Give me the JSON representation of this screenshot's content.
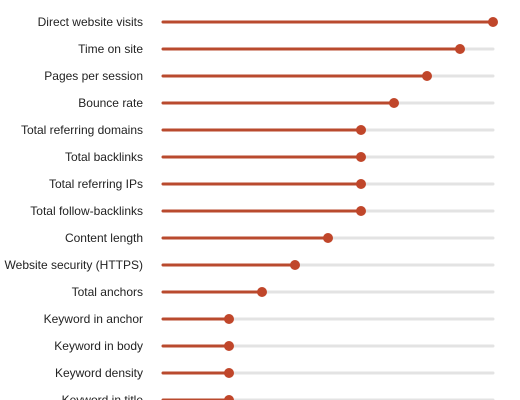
{
  "chart_data": {
    "type": "lollipop",
    "title": "",
    "xlabel": "",
    "ylabel": "",
    "xlim": [
      0,
      10
    ],
    "categories": [
      "Direct website visits",
      "Time on site",
      "Pages per session",
      "Bounce rate",
      "Total referring domains",
      "Total backlinks",
      "Total referring IPs",
      "Total follow-backlinks",
      "Content length",
      "Website security (HTTPS)",
      "Total anchors",
      "Keyword in anchor",
      "Keyword in body",
      "Keyword density",
      "Keyword in title"
    ],
    "values": [
      10,
      9,
      8,
      7,
      6,
      6,
      6,
      6,
      5,
      4,
      3,
      2,
      2,
      2,
      2
    ],
    "grid": false,
    "legend": "none",
    "colors": {
      "stem": "#b94a2e",
      "dot": "#c0462a",
      "track": "#e3e3e3",
      "label": "#222222"
    }
  }
}
